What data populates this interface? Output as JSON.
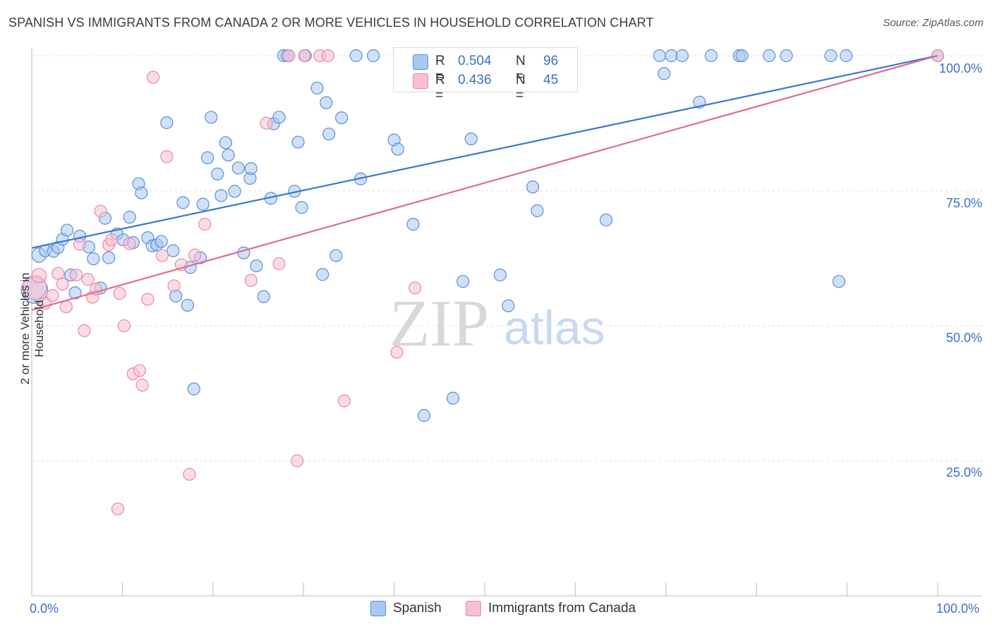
{
  "title": "SPANISH VS IMMIGRANTS FROM CANADA 2 OR MORE VEHICLES IN HOUSEHOLD CORRELATION CHART",
  "source": "Source: ZipAtlas.com",
  "watermark": {
    "zip": "ZIP",
    "atlas": "atlas"
  },
  "legend_top": {
    "rows": [
      {
        "r_label": "R =",
        "r_value": "0.504",
        "n_label": "N =",
        "n_value": "96",
        "color": "#a9c8f0",
        "stroke": "#5b8fd8"
      },
      {
        "r_label": "R =",
        "r_value": "0.436",
        "n_label": "N =",
        "n_value": "45",
        "color": "#f7bfd0",
        "stroke": "#e88aa8"
      }
    ]
  },
  "bottom_legend": [
    {
      "label": "Spanish",
      "color": "#a9c8f0",
      "stroke": "#5b8fd8"
    },
    {
      "label": "Immigrants from Canada",
      "color": "#f7bfd0",
      "stroke": "#e88aa8"
    }
  ],
  "chart_data": {
    "type": "scatter",
    "title": "SPANISH VS IMMIGRANTS FROM CANADA 2 OR MORE VEHICLES IN HOUSEHOLD CORRELATION CHART",
    "xlabel": "",
    "ylabel": "2 or more Vehicles in Household",
    "xlim": [
      0,
      100
    ],
    "ylim": [
      0,
      105
    ],
    "x_tick_labels": {
      "left": "0.0%",
      "right": "100.0%"
    },
    "y_ticks": [
      {
        "value": 25,
        "label": "25.0%"
      },
      {
        "value": 50,
        "label": "50.0%"
      },
      {
        "value": 75,
        "label": "75.0%"
      },
      {
        "value": 100,
        "label": "100.0%"
      }
    ],
    "series": [
      {
        "name": "Spanish",
        "color": "#a9c8f0",
        "stroke": "#5b8fd8",
        "line_color": "#3a78cf",
        "trend": {
          "x0": 0,
          "y0": 64.4,
          "x1": 100,
          "y1": 100.0
        },
        "points": [
          [
            0.3,
            56.6,
            22
          ],
          [
            0.8,
            63.1,
            12
          ],
          [
            1.5,
            63.9,
            10
          ],
          [
            2.4,
            63.8,
            10
          ],
          [
            2.9,
            64.5,
            10
          ],
          [
            3.4,
            66.0,
            10
          ],
          [
            3.9,
            67.7,
            10
          ],
          [
            4.3,
            59.4,
            10
          ],
          [
            4.8,
            56.1,
            10
          ],
          [
            5.3,
            66.6,
            10
          ],
          [
            6.3,
            64.6,
            10
          ],
          [
            6.8,
            62.4,
            10
          ],
          [
            7.6,
            57.0,
            10
          ],
          [
            8.1,
            69.9,
            10
          ],
          [
            8.5,
            62.6,
            10
          ],
          [
            9.4,
            67.0,
            10
          ],
          [
            10.1,
            65.9,
            10
          ],
          [
            10.8,
            70.1,
            10
          ],
          [
            11.2,
            65.4,
            10
          ],
          [
            11.8,
            76.3,
            10
          ],
          [
            12.1,
            74.6,
            10
          ],
          [
            12.8,
            66.3,
            10
          ],
          [
            13.3,
            64.8,
            10
          ],
          [
            13.8,
            65.0,
            10
          ],
          [
            14.3,
            65.6,
            10
          ],
          [
            14.9,
            87.6,
            10
          ],
          [
            15.6,
            63.9,
            10
          ],
          [
            15.9,
            55.5,
            10
          ],
          [
            16.7,
            72.8,
            10
          ],
          [
            17.2,
            53.8,
            10
          ],
          [
            17.5,
            60.8,
            10
          ],
          [
            17.9,
            38.3,
            10
          ],
          [
            18.6,
            62.6,
            10
          ],
          [
            18.9,
            72.5,
            10
          ],
          [
            19.4,
            81.1,
            10
          ],
          [
            19.8,
            88.6,
            10
          ],
          [
            20.5,
            78.1,
            10
          ],
          [
            20.9,
            74.1,
            10
          ],
          [
            21.4,
            83.9,
            10
          ],
          [
            21.7,
            81.6,
            10
          ],
          [
            22.4,
            74.9,
            10
          ],
          [
            22.8,
            79.2,
            10
          ],
          [
            23.4,
            63.5,
            10
          ],
          [
            24.1,
            77.3,
            10
          ],
          [
            24.2,
            79.1,
            10
          ],
          [
            24.8,
            61.1,
            10
          ],
          [
            25.6,
            55.4,
            10
          ],
          [
            26.4,
            73.6,
            10
          ],
          [
            26.7,
            87.4,
            10
          ],
          [
            27.3,
            88.6,
            10
          ],
          [
            27.8,
            100,
            10
          ],
          [
            28.2,
            100,
            10
          ],
          [
            29.0,
            74.9,
            10
          ],
          [
            29.4,
            84.0,
            10
          ],
          [
            29.8,
            71.9,
            10
          ],
          [
            30.2,
            100,
            10
          ],
          [
            31.5,
            94.0,
            10
          ],
          [
            32.1,
            59.5,
            10
          ],
          [
            32.5,
            91.3,
            10
          ],
          [
            32.8,
            85.5,
            10
          ],
          [
            33.6,
            63.0,
            10
          ],
          [
            34.2,
            88.5,
            10
          ],
          [
            35.8,
            100,
            10
          ],
          [
            36.3,
            77.2,
            10
          ],
          [
            37.7,
            100,
            10
          ],
          [
            40.0,
            84.4,
            10
          ],
          [
            40.4,
            82.7,
            10
          ],
          [
            42.1,
            68.8,
            10
          ],
          [
            43.3,
            33.4,
            10
          ],
          [
            44.7,
            100,
            10
          ],
          [
            45.6,
            95.6,
            10
          ],
          [
            46.5,
            36.6,
            10
          ],
          [
            47.6,
            58.2,
            10
          ],
          [
            48.5,
            84.6,
            10
          ],
          [
            49.5,
            100,
            10
          ],
          [
            51.7,
            59.4,
            10
          ],
          [
            52.6,
            53.7,
            10
          ],
          [
            55.3,
            75.7,
            10
          ],
          [
            55.8,
            71.3,
            10
          ],
          [
            56.3,
            100,
            10
          ],
          [
            63.4,
            69.6,
            10
          ],
          [
            69.3,
            100,
            10
          ],
          [
            69.8,
            96.7,
            10
          ],
          [
            70.6,
            100,
            10
          ],
          [
            71.8,
            100,
            10
          ],
          [
            73.7,
            91.4,
            10
          ],
          [
            75.0,
            100,
            10
          ],
          [
            78.1,
            100,
            10
          ],
          [
            78.4,
            100,
            10
          ],
          [
            81.4,
            100,
            10
          ],
          [
            83.3,
            100,
            10
          ],
          [
            88.2,
            100,
            10
          ],
          [
            89.1,
            58.2,
            10
          ],
          [
            89.9,
            100,
            10
          ],
          [
            100,
            100,
            10
          ]
        ]
      },
      {
        "name": "Immigrants from Canada",
        "color": "#f7bfd0",
        "stroke": "#e88aa8",
        "line_color": "#e06b93",
        "trend": {
          "x0": 0,
          "y0": 52.9,
          "x1": 100,
          "y1": 100.0
        },
        "points": [
          [
            0.3,
            57.1,
            20
          ],
          [
            0.8,
            59.3,
            12
          ],
          [
            1.5,
            54.2,
            10
          ],
          [
            2.3,
            55.6,
            10
          ],
          [
            2.9,
            59.7,
            10
          ],
          [
            3.4,
            57.7,
            10
          ],
          [
            3.8,
            53.5,
            10
          ],
          [
            4.9,
            59.4,
            10
          ],
          [
            5.3,
            65.1,
            10
          ],
          [
            5.8,
            49.1,
            10
          ],
          [
            6.2,
            58.6,
            10
          ],
          [
            6.7,
            55.3,
            10
          ],
          [
            7.1,
            56.8,
            10
          ],
          [
            7.6,
            71.2,
            10
          ],
          [
            8.5,
            65.0,
            10
          ],
          [
            8.8,
            65.9,
            10
          ],
          [
            9.5,
            16.1,
            10
          ],
          [
            9.7,
            56.0,
            10
          ],
          [
            10.2,
            50.0,
            10
          ],
          [
            10.8,
            65.2,
            10
          ],
          [
            11.2,
            41.1,
            10
          ],
          [
            11.9,
            41.7,
            10
          ],
          [
            12.2,
            39.0,
            10
          ],
          [
            12.8,
            54.9,
            10
          ],
          [
            13.4,
            96.0,
            10
          ],
          [
            14.4,
            63.0,
            10
          ],
          [
            14.9,
            81.3,
            10
          ],
          [
            15.7,
            57.4,
            10
          ],
          [
            16.5,
            61.3,
            10
          ],
          [
            17.4,
            22.5,
            10
          ],
          [
            18.0,
            63.1,
            10
          ],
          [
            19.1,
            68.8,
            10
          ],
          [
            24.2,
            58.4,
            10
          ],
          [
            25.9,
            87.5,
            10
          ],
          [
            27.3,
            61.5,
            10
          ],
          [
            28.4,
            100,
            10
          ],
          [
            29.3,
            25.0,
            10
          ],
          [
            30.1,
            100,
            10
          ],
          [
            31.8,
            100,
            10
          ],
          [
            32.7,
            100,
            10
          ],
          [
            34.5,
            36.1,
            10
          ],
          [
            40.3,
            45.1,
            10
          ],
          [
            42.3,
            57.0,
            10
          ],
          [
            45.5,
            100,
            10
          ],
          [
            100,
            100,
            10
          ]
        ]
      }
    ]
  }
}
